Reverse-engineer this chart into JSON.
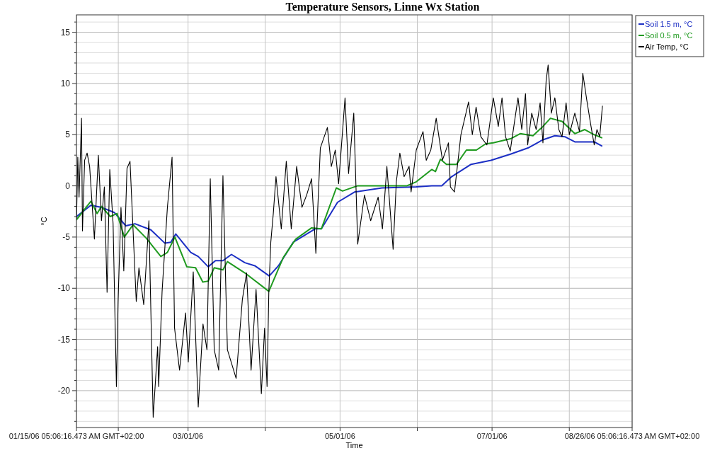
{
  "chart_data": {
    "type": "line",
    "title": "Temperature Sensors, Linne Wx Station",
    "xlabel": "Time",
    "ylabel": "°C",
    "xlim": [
      "2006-01-15T05:06",
      "2006-08-26T05:06"
    ],
    "xticks": [
      {
        "value": "2006-01-15T05:06",
        "label": "01/15/06 05:06:16.473 AM GMT+02:00"
      },
      {
        "value": "2006-02-01",
        "label": null
      },
      {
        "value": "2006-03-01",
        "label": "03/01/06"
      },
      {
        "value": "2006-04-01",
        "label": null
      },
      {
        "value": "2006-05-01",
        "label": "05/01/06"
      },
      {
        "value": "2006-06-01",
        "label": null
      },
      {
        "value": "2006-07-01",
        "label": "07/01/06"
      },
      {
        "value": "2006-08-01",
        "label": null
      },
      {
        "value": "2006-08-26T05:06",
        "label": "08/26/06 05:06:16.473 AM GMT+02:00"
      }
    ],
    "ylim": [
      -23.6,
      16.7
    ],
    "yticks": [
      {
        "value": -23,
        "label": null
      },
      {
        "value": -22,
        "label": null
      },
      {
        "value": -21,
        "label": null
      },
      -20,
      {
        "value": -19,
        "label": null
      },
      {
        "value": -18,
        "label": null
      },
      {
        "value": -17,
        "label": null
      },
      {
        "value": -16,
        "label": null
      },
      -15,
      {
        "value": -14,
        "label": null
      },
      {
        "value": -13,
        "label": null
      },
      {
        "value": -12,
        "label": null
      },
      {
        "value": -11,
        "label": null
      },
      -10,
      {
        "value": -9,
        "label": null
      },
      {
        "value": -8,
        "label": null
      },
      {
        "value": -7,
        "label": null
      },
      {
        "value": -6,
        "label": null
      },
      -5,
      {
        "value": -4,
        "label": null
      },
      {
        "value": -3,
        "label": null
      },
      {
        "value": -2,
        "label": null
      },
      {
        "value": -1,
        "label": null
      },
      0,
      {
        "value": 1,
        "label": null
      },
      {
        "value": 2,
        "label": null
      },
      {
        "value": 3,
        "label": null
      },
      {
        "value": 4,
        "label": null
      },
      5,
      {
        "value": 6,
        "label": null
      },
      {
        "value": 7,
        "label": null
      },
      {
        "value": 8,
        "label": null
      },
      {
        "value": 9,
        "label": null
      },
      10,
      {
        "value": 11,
        "label": null
      },
      {
        "value": 12,
        "label": null
      },
      {
        "value": 13,
        "label": null
      },
      {
        "value": 14,
        "label": null
      },
      15,
      {
        "value": 16,
        "label": null
      }
    ],
    "grid": true,
    "legend": "top right",
    "marker": "none",
    "line_style": "solid",
    "series": [
      {
        "name": "Soil 1.5 m, °C",
        "color": "#1c2fc4",
        "x": [
          "2006-01-15T06:00",
          "2006-01-21T00:00",
          "2006-01-25T06:00",
          "2006-01-30T10:00",
          "2006-02-04T00:00",
          "2006-02-07T17:00",
          "2006-02-14T02:00",
          "2006-02-19T17:00",
          "2006-02-22T02:00",
          "2006-02-24T02:00",
          "2006-03-02T02:00",
          "2006-03-05T02:00",
          "2006-03-09T02:00",
          "2006-03-12T00:00",
          "2006-03-15T00:00",
          "2006-03-18T10:00",
          "2006-03-23T19:00",
          "2006-03-27T19:00",
          "2006-04-02T14:00",
          "2006-04-06T07:00",
          "2006-04-12T05:00",
          "2006-04-21T00:00",
          "2006-04-23T12:00",
          "2006-04-30T00:00",
          "2006-05-06T19:00",
          "2006-05-17T19:00",
          "2006-05-31T14:00",
          "2006-06-06T19:00",
          "2006-06-10T19:00",
          "2006-06-14T19:00",
          "2006-06-22T14:00",
          "2006-06-30T14:00",
          "2006-07-08T10:00",
          "2006-07-15T10:00",
          "2006-07-21T10:00",
          "2006-07-26T05:00",
          "2006-07-30T05:00",
          "2006-08-03T05:00",
          "2006-08-07T05:00",
          "2006-08-11T00:00",
          "2006-08-14T00:00"
        ],
        "values": [
          -3.0,
          -1.9,
          -2.1,
          -2.6,
          -3.9,
          -3.7,
          -4.3,
          -5.6,
          -5.5,
          -4.7,
          -6.5,
          -6.9,
          -7.9,
          -7.3,
          -7.3,
          -6.7,
          -7.5,
          -7.8,
          -8.8,
          -7.8,
          -5.5,
          -4.2,
          -4.2,
          -1.6,
          -0.6,
          -0.2,
          -0.1,
          0.0,
          0.0,
          0.9,
          2.1,
          2.5,
          3.1,
          3.7,
          4.5,
          4.9,
          4.8,
          4.3,
          4.3,
          4.3,
          3.9
        ]
      },
      {
        "name": "Soil 0.5 m, °C",
        "color": "#1f9a1f",
        "x": [
          "2006-01-15T06:00",
          "2006-01-21T00:00",
          "2006-01-23T12:00",
          "2006-01-25T06:00",
          "2006-01-28T19:00",
          "2006-01-31T12:00",
          "2006-02-03T10:00",
          "2006-02-06T22:00",
          "2006-02-12T05:00",
          "2006-02-18T02:00",
          "2006-02-20T17:00",
          "2006-02-23T17:00",
          "2006-02-28T12:00",
          "2006-03-04T00:00",
          "2006-03-06T22:00",
          "2006-03-09T02:00",
          "2006-03-11T12:00",
          "2006-03-15T00:00",
          "2006-03-16T19:00",
          "2006-03-23T19:00",
          "2006-04-02T10:00",
          "2006-04-08T05:00",
          "2006-04-13T05:00",
          "2006-04-19T14:00",
          "2006-04-23T12:00",
          "2006-04-29T12:00",
          "2006-05-02T00:00",
          "2006-05-07T22:00",
          "2006-05-27T17:00",
          "2006-05-31T14:00",
          "2006-06-06T19:00",
          "2006-06-08T07:00",
          "2006-06-10T07:00",
          "2006-06-12T17:00",
          "2006-06-16T17:00",
          "2006-06-20T17:00",
          "2006-06-24T17:00",
          "2006-06-28T10:00",
          "2006-07-01T12:00",
          "2006-07-08T10:00",
          "2006-07-12T07:00",
          "2006-07-17T10:00",
          "2006-07-21T10:00",
          "2006-07-24T10:00",
          "2006-07-29T02:00",
          "2006-08-03T05:00",
          "2006-08-07T05:00",
          "2006-08-11T00:00",
          "2006-08-14T00:00"
        ],
        "values": [
          -3.3,
          -1.5,
          -2.7,
          -2.0,
          -3.0,
          -2.7,
          -5.0,
          -3.8,
          -5.1,
          -6.9,
          -6.5,
          -5.0,
          -7.9,
          -8.0,
          -9.4,
          -9.3,
          -8.0,
          -8.2,
          -7.4,
          -8.5,
          -10.3,
          -7.0,
          -5.2,
          -4.1,
          -4.2,
          -0.2,
          -0.5,
          0.0,
          0.0,
          0.4,
          1.6,
          1.4,
          2.6,
          2.1,
          2.1,
          3.5,
          3.5,
          4.1,
          4.2,
          4.6,
          5.1,
          4.9,
          5.8,
          6.6,
          6.3,
          5.1,
          5.5,
          5.0,
          4.7
        ]
      },
      {
        "name": "Air Temp, °C",
        "color": "#000000",
        "x": [
          "2006-01-15T06:00",
          "2006-01-15T18:00",
          "2006-01-16T06:00",
          "2006-01-17T06:00",
          "2006-01-17T15:00",
          "2006-01-18T12:00",
          "2006-01-19T12:00",
          "2006-01-20T12:00",
          "2006-01-22T10:00",
          "2006-01-24T00:00",
          "2006-01-25T06:00",
          "2006-01-26T10:00",
          "2006-01-27T12:00",
          "2006-01-28T14:00",
          "2006-01-29T22:00",
          "2006-01-31T06:00",
          "2006-01-31T22:00",
          "2006-02-02T02:00",
          "2006-02-03T05:00",
          "2006-02-04T12:00",
          "2006-02-05T17:00",
          "2006-02-08T05:00",
          "2006-02-09T07:00",
          "2006-02-11T05:00",
          "2006-02-13T07:00",
          "2006-02-15T00:00",
          "2006-02-16T19:00",
          "2006-02-17T05:00",
          "2006-02-18T14:00",
          "2006-02-20T17:00",
          "2006-02-22T14:00",
          "2006-02-23T14:00",
          "2006-02-25T14:00",
          "2006-02-28T00:00",
          "2006-03-01T02:00",
          "2006-03-03T02:00",
          "2006-03-05T02:00",
          "2006-03-07T00:00",
          "2006-03-08T14:00",
          "2006-03-09T22:00",
          "2006-03-11T12:00",
          "2006-03-13T07:00",
          "2006-03-15T00:00",
          "2006-03-16T19:00",
          "2006-03-20T07:00",
          "2006-03-22T19:00",
          "2006-03-24T12:00",
          "2006-03-26T07:00",
          "2006-03-28T07:00",
          "2006-03-30T10:00",
          "2006-03-31T17:00",
          "2006-04-01T17:00",
          "2006-04-02T10:00",
          "2006-04-03T05:00",
          "2006-04-04T05:00",
          "2006-04-05T07:00",
          "2006-04-07T10:00",
          "2006-04-09T10:00",
          "2006-04-11T10:00",
          "2006-04-13T14:00",
          "2006-04-15T17:00",
          "2006-04-17T14:00",
          "2006-04-19T14:00",
          "2006-04-21T07:00",
          "2006-04-23T02:00",
          "2006-04-25T22:00",
          "2006-04-27T12:00",
          "2006-04-29T02:00",
          "2006-04-30T10:00",
          "2006-05-03T00:00",
          "2006-05-04T10:00",
          "2006-05-06T12:00",
          "2006-05-08T02:00",
          "2006-05-10T19:00",
          "2006-05-13T07:00",
          "2006-05-16T07:00",
          "2006-05-18T00:00",
          "2006-05-19T19:00",
          "2006-05-22T07:00",
          "2006-05-23T14:00",
          "2006-05-25T00:00",
          "2006-05-26T17:00",
          "2006-05-28T17:00",
          "2006-05-29T12:00",
          "2006-05-31T14:00",
          "2006-06-03T07:00",
          "2006-06-04T14:00",
          "2006-06-06T10:00",
          "2006-06-08T14:00",
          "2006-06-11T02:00",
          "2006-06-13T12:00",
          "2006-06-14T07:00",
          "2006-06-15T22:00",
          "2006-06-18T12:00",
          "2006-06-21T14:00",
          "2006-06-23T02:00",
          "2006-06-24T14:00",
          "2006-06-26T12:00",
          "2006-06-28T22:00",
          "2006-07-01T12:00",
          "2006-07-03T12:00",
          "2006-07-05T00:00",
          "2006-07-06T10:00",
          "2006-07-08T07:00",
          "2006-07-11T10:00",
          "2006-07-12T22:00",
          "2006-07-14T10:00",
          "2006-07-15T07:00",
          "2006-07-16T22:00",
          "2006-07-18T17:00",
          "2006-07-20T07:00",
          "2006-07-21T10:00",
          "2006-07-22T17:00",
          "2006-07-23T12:00",
          "2006-07-24T19:00",
          "2006-07-26T05:00",
          "2006-07-27T19:00",
          "2006-07-29T02:00",
          "2006-07-30T17:00",
          "2006-08-01T00:00",
          "2006-08-03T05:00",
          "2006-08-05T02:00",
          "2006-08-06T10:00",
          "2006-08-08T00:00",
          "2006-08-09T14:00",
          "2006-08-11T00:00",
          "2006-08-12T02:00",
          "2006-08-13T05:00",
          "2006-08-14T07:00"
        ],
        "values": [
          -3.2,
          2.8,
          -1.1,
          6.6,
          -4.4,
          2.5,
          3.2,
          1.9,
          -5.2,
          3.0,
          -3.4,
          -0.1,
          -10.4,
          1.6,
          -3.7,
          -19.6,
          -11.3,
          -2.1,
          -8.3,
          1.7,
          2.4,
          -11.3,
          -8.0,
          -11.6,
          -3.4,
          -22.6,
          -15.7,
          -19.6,
          -10.3,
          -2.1,
          2.8,
          -13.9,
          -18.0,
          -12.4,
          -17.2,
          -8.4,
          -21.6,
          -13.5,
          -16.0,
          0.7,
          -16.0,
          -18.0,
          1.0,
          -16.0,
          -18.8,
          -11.1,
          -8.5,
          -18.0,
          -10.1,
          -20.3,
          -13.9,
          -19.6,
          -10.3,
          -5.5,
          -2.7,
          0.9,
          -4.2,
          2.4,
          -4.2,
          1.9,
          -2.1,
          -0.9,
          0.7,
          -6.6,
          3.7,
          5.7,
          1.9,
          3.5,
          0.2,
          8.6,
          1.2,
          7.1,
          -5.7,
          -0.9,
          -3.4,
          -1.1,
          -4.2,
          1.9,
          -6.2,
          0.4,
          3.2,
          0.9,
          1.9,
          -0.6,
          3.5,
          5.3,
          2.5,
          3.5,
          6.6,
          2.5,
          4.2,
          -0.1,
          -0.6,
          5.0,
          8.2,
          5.0,
          7.7,
          4.8,
          4.0,
          8.6,
          5.8,
          8.6,
          4.8,
          3.4,
          8.6,
          5.5,
          9.0,
          4.0,
          7.1,
          5.5,
          8.1,
          4.2,
          10.3,
          11.8,
          7.1,
          8.6,
          5.5,
          4.8,
          8.1,
          5.0,
          7.1,
          5.3,
          11.0,
          8.4,
          6.0,
          4.0,
          5.5,
          4.8,
          7.8
        ]
      }
    ]
  }
}
